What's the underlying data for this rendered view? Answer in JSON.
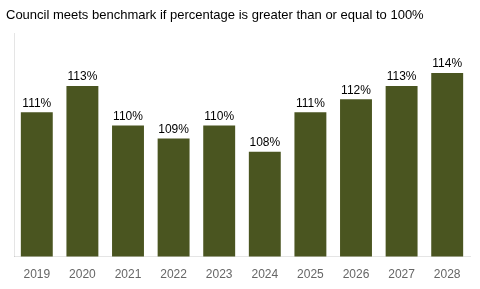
{
  "chart_data": {
    "type": "bar",
    "title": "Council meets benchmark if percentage is greater than or equal to 100%",
    "categories": [
      "2019",
      "2020",
      "2021",
      "2022",
      "2023",
      "2024",
      "2025",
      "2026",
      "2027",
      "2028"
    ],
    "values": [
      111,
      113,
      110,
      109,
      110,
      108,
      111,
      112,
      113,
      114
    ],
    "value_labels": [
      "111%",
      "113%",
      "110%",
      "109%",
      "110%",
      "108%",
      "111%",
      "112%",
      "113%",
      "114%"
    ],
    "color": "#4a5520",
    "ylim": [
      100,
      117
    ],
    "grid": false,
    "data_labels": true,
    "tick_labels": "x"
  }
}
